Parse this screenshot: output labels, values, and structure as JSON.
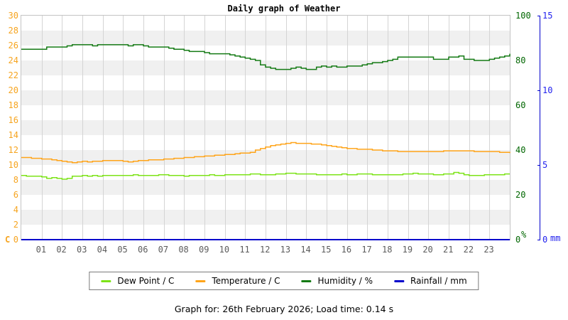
{
  "title": "Daily graph of Weather",
  "footer": "Graph for: 26th February 2026; Load time: 0.14 s",
  "colors": {
    "grid": "#d4d4d4",
    "band": "#f0f0f0",
    "x_label": "#5c5c5c",
    "left_axis_label": "#f6a41f",
    "humidity_axis_label": "#006600",
    "rain_axis_label": "#2222ee",
    "rain_axis_line": "#0000cc"
  },
  "legend": [
    {
      "label": "Dew Point / C",
      "color": "#7ce317"
    },
    {
      "label": "Temperature / C",
      "color": "#ffa419"
    },
    {
      "label": "Humidity / %",
      "color": "#147a14"
    },
    {
      "label": "Rainfall / mm",
      "color": "#0000cc"
    }
  ],
  "chart_data": {
    "type": "line",
    "step": true,
    "title": "Daily graph of Weather",
    "x_range": [
      0,
      24
    ],
    "x_tick_labels": [
      "01",
      "02",
      "03",
      "04",
      "05",
      "06",
      "07",
      "08",
      "09",
      "10",
      "11",
      "12",
      "13",
      "14",
      "15",
      "16",
      "17",
      "18",
      "19",
      "20",
      "21",
      "22",
      "23"
    ],
    "grid": true,
    "legend_position": "bottom",
    "axes": {
      "temperature_c": {
        "side": "left",
        "range": [
          0,
          30
        ],
        "tick_step": 2,
        "unit": "C",
        "label_color": "#f6a41f"
      },
      "humidity_pct": {
        "side": "right",
        "range": [
          0,
          100
        ],
        "tick_step": 20,
        "unit": "%",
        "label_color": "#006600"
      },
      "rain_mm": {
        "side": "far-right",
        "range": [
          0,
          15
        ],
        "tick_step": 5,
        "unit": "mm",
        "label_color": "#2222ee",
        "axis_color": "#0000cc"
      }
    },
    "series": [
      {
        "name": "Dew Point / C",
        "axis": "temperature_c",
        "color": "#7ce317",
        "width": 1.5,
        "x_start": 0,
        "x_step": 0.25,
        "values": [
          8.6,
          8.5,
          8.5,
          8.5,
          8.4,
          8.2,
          8.3,
          8.2,
          8.1,
          8.2,
          8.5,
          8.5,
          8.6,
          8.5,
          8.6,
          8.5,
          8.6,
          8.6,
          8.6,
          8.6,
          8.6,
          8.6,
          8.7,
          8.6,
          8.6,
          8.6,
          8.6,
          8.7,
          8.7,
          8.6,
          8.6,
          8.6,
          8.5,
          8.6,
          8.6,
          8.6,
          8.6,
          8.7,
          8.6,
          8.6,
          8.7,
          8.7,
          8.7,
          8.7,
          8.7,
          8.8,
          8.8,
          8.7,
          8.7,
          8.7,
          8.8,
          8.8,
          8.9,
          8.9,
          8.8,
          8.8,
          8.8,
          8.8,
          8.7,
          8.7,
          8.7,
          8.7,
          8.7,
          8.8,
          8.7,
          8.7,
          8.8,
          8.8,
          8.8,
          8.7,
          8.7,
          8.7,
          8.7,
          8.7,
          8.7,
          8.8,
          8.8,
          8.9,
          8.8,
          8.8,
          8.8,
          8.7,
          8.7,
          8.8,
          8.8,
          9.0,
          8.9,
          8.7,
          8.6,
          8.6,
          8.6,
          8.7,
          8.7,
          8.7,
          8.7,
          8.8,
          8.8
        ]
      },
      {
        "name": "Temperature / C",
        "axis": "temperature_c",
        "color": "#ffa419",
        "width": 1.5,
        "x_start": 0,
        "x_step": 0.25,
        "values": [
          11.0,
          11.0,
          10.9,
          10.9,
          10.8,
          10.8,
          10.7,
          10.6,
          10.5,
          10.4,
          10.3,
          10.4,
          10.5,
          10.4,
          10.5,
          10.5,
          10.6,
          10.6,
          10.6,
          10.6,
          10.5,
          10.4,
          10.5,
          10.6,
          10.6,
          10.7,
          10.7,
          10.7,
          10.8,
          10.8,
          10.9,
          10.9,
          11.0,
          11.0,
          11.1,
          11.1,
          11.2,
          11.2,
          11.3,
          11.3,
          11.4,
          11.4,
          11.5,
          11.6,
          11.6,
          11.7,
          12.0,
          12.2,
          12.4,
          12.6,
          12.7,
          12.8,
          12.9,
          13.0,
          12.9,
          12.9,
          12.9,
          12.8,
          12.8,
          12.7,
          12.6,
          12.5,
          12.4,
          12.3,
          12.2,
          12.2,
          12.1,
          12.1,
          12.1,
          12.0,
          12.0,
          11.9,
          11.9,
          11.9,
          11.8,
          11.8,
          11.8,
          11.8,
          11.8,
          11.8,
          11.8,
          11.8,
          11.8,
          11.9,
          11.9,
          11.9,
          11.9,
          11.9,
          11.9,
          11.8,
          11.8,
          11.8,
          11.8,
          11.8,
          11.7,
          11.7,
          11.6
        ]
      },
      {
        "name": "Humidity / %",
        "axis": "humidity_pct",
        "color": "#147a14",
        "width": 1.5,
        "x_start": 0,
        "x_step": 0.25,
        "values": [
          85,
          85,
          85,
          85,
          85,
          86,
          86,
          86,
          86,
          86.5,
          87,
          87,
          87,
          87,
          86.5,
          87,
          87,
          87,
          87,
          87,
          87,
          86.5,
          87,
          87,
          86.5,
          86,
          86,
          86,
          86,
          85.5,
          85,
          85,
          84.5,
          84,
          84,
          84,
          83.5,
          83,
          83,
          83,
          83,
          82.5,
          82,
          81.5,
          81,
          80.5,
          80,
          78,
          77,
          76.5,
          76,
          76,
          76,
          76.5,
          77,
          76.5,
          76,
          76,
          77,
          77.5,
          77,
          77.5,
          77,
          77,
          77.5,
          77.5,
          77.5,
          78,
          78.5,
          79,
          79,
          79.5,
          80,
          80.5,
          81.5,
          81.5,
          81.5,
          81.5,
          81.5,
          81.5,
          81.5,
          80.5,
          80.5,
          80.5,
          81.5,
          81.5,
          82,
          80.5,
          80.5,
          80,
          80,
          80,
          80.5,
          81,
          81.5,
          82,
          83
        ]
      },
      {
        "name": "Rainfall / mm",
        "axis": "rain_mm",
        "color": "#0000cc",
        "width": 2,
        "x": [
          0,
          24
        ],
        "values": [
          0,
          0
        ]
      }
    ]
  }
}
